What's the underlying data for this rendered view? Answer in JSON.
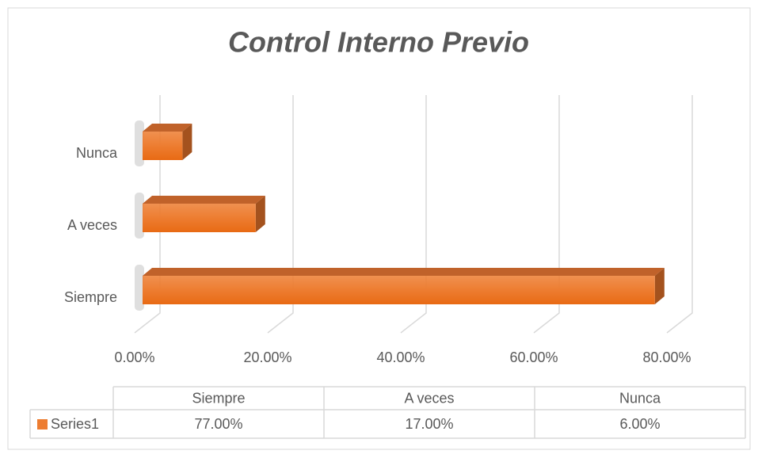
{
  "chart_data": {
    "type": "bar",
    "orientation": "horizontal",
    "title": "Control Interno Previo",
    "categories": [
      "Siempre",
      "A veces",
      "Nunca"
    ],
    "series": [
      {
        "name": "Series1",
        "color": "#ed7d31",
        "values": [
          77,
          17,
          6
        ],
        "value_labels": [
          "77.00%",
          "17.00%",
          "6.00%"
        ]
      }
    ],
    "xlim": [
      0,
      80
    ],
    "xticks": [
      {
        "value": 0,
        "label": "0.00%"
      },
      {
        "value": 20,
        "label": "20.00%"
      },
      {
        "value": 40,
        "label": "40.00%"
      },
      {
        "value": 60,
        "label": "60.00%"
      },
      {
        "value": 80,
        "label": "80.00%"
      }
    ],
    "grid": true,
    "data_table": true
  }
}
